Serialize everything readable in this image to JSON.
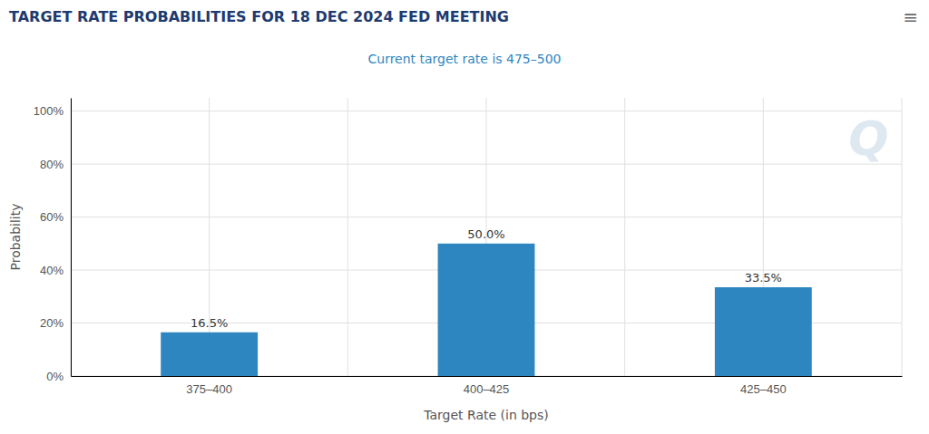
{
  "chart_data": {
    "type": "bar",
    "title": "TARGET RATE PROBABILITIES FOR 18 DEC 2024 FED MEETING",
    "subtitle": "Current target rate is 475–500",
    "x_label": "Target Rate (in bps)",
    "y_label": "Probability",
    "categories": [
      "375–400",
      "400–425",
      "425–450"
    ],
    "values": [
      16.5,
      50.0,
      33.5
    ],
    "value_labels": [
      "16.5%",
      "50.0%",
      "33.5%"
    ],
    "data_labels": true,
    "color": "#2e86c1",
    "ylim": [
      0,
      105
    ],
    "yticks": [
      {
        "value": 0,
        "label": "0%"
      },
      {
        "value": 20,
        "label": "20%"
      },
      {
        "value": 40,
        "label": "40%"
      },
      {
        "value": 60,
        "label": "60%"
      },
      {
        "value": 80,
        "label": "80%"
      },
      {
        "value": 100,
        "label": "100%"
      }
    ],
    "grid": true,
    "annotations": [
      "≡",
      "Q"
    ]
  }
}
